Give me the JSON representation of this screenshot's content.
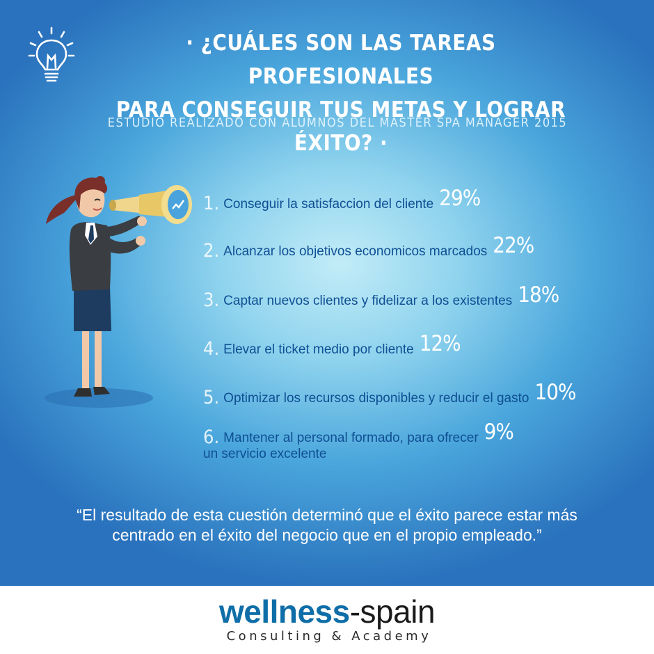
{
  "title_line1": "· ¿CUÁLES SON LAS TAREAS PROFESIONALES",
  "title_line2": "PARA CONSEGUIR TUS METAS Y LOGRAR ÉXITO? ·",
  "subtitle": "ESTUDIO REALIZADO  CON ALUMNOS DEL MASTER SPA MANAGER 2015",
  "items": [
    {
      "num": "1.",
      "text": "Conseguir la satisfaccion del cliente",
      "pct": "29%"
    },
    {
      "num": "2.",
      "text": "Alcanzar los objetivos economicos marcados",
      "pct": "22%"
    },
    {
      "num": "3.",
      "text": "Captar nuevos clientes y fidelizar a los existentes",
      "pct": "18%"
    },
    {
      "num": "4.",
      "text": "Elevar el ticket medio por cliente",
      "pct": "12%"
    },
    {
      "num": "5.",
      "text": "Optimizar los recursos disponibles y reducir el gasto",
      "pct": "10%"
    },
    {
      "num": "6.",
      "text_line1": "Mantener al personal formado, para ofrecer",
      "text_line2": "un servicio excelente",
      "pct": "9%"
    }
  ],
  "quote_line1": "“El resultado de esta cuestión determinó que el éxito parece estar más",
  "quote_line2": "centrado en el éxito del negocio que en el propio empleado.”",
  "logo": {
    "word1": "wellness",
    "word2": "-spain",
    "tagline": "Consulting & Academy"
  },
  "colors": {
    "bg_dark": "#2a72bd",
    "bg_light": "#c2ecf7",
    "item_text": "#0f4f93",
    "logo_blue": "#0f6ea8"
  },
  "icons": {
    "top_left": "lightbulb-icon",
    "figure": "woman-with-telescope-illustration"
  }
}
